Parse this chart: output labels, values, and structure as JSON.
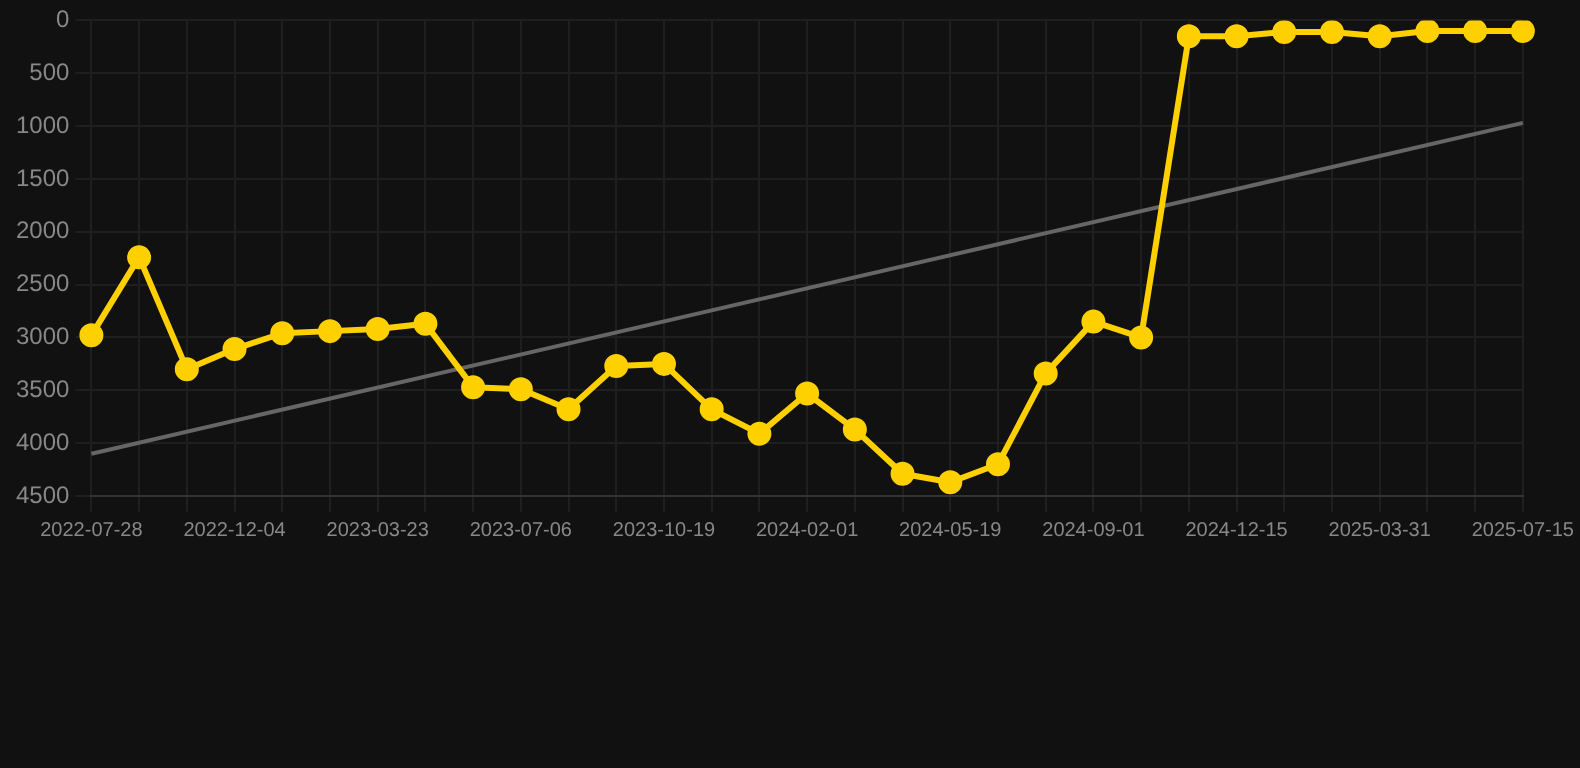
{
  "chart_data": {
    "type": "line",
    "categories": [
      "2022-07-28",
      null,
      null,
      "2022-12-04",
      null,
      null,
      "2023-03-23",
      null,
      null,
      "2023-07-06",
      null,
      null,
      "2023-10-19",
      null,
      null,
      "2024-02-01",
      null,
      null,
      "2024-05-19",
      null,
      null,
      "2024-09-01",
      null,
      null,
      "2024-12-15",
      null,
      null,
      "2025-03-31",
      null,
      null,
      "2025-07-15"
    ],
    "series": [
      {
        "color": "#ffd000",
        "marker": "circle",
        "values": [
          2980,
          2240,
          3300,
          3110,
          2960,
          2940,
          2920,
          2870,
          3470,
          3490,
          3680,
          3270,
          3250,
          3680,
          3910,
          3530,
          3870,
          4290,
          4370,
          4200,
          3340,
          2850,
          3000,
          150,
          150,
          110,
          110,
          150,
          100,
          100,
          100
        ]
      },
      {
        "color": "#666666",
        "marker": "none",
        "values": [
          4100,
          null,
          null,
          null,
          null,
          null,
          null,
          null,
          null,
          null,
          null,
          null,
          null,
          null,
          null,
          null,
          null,
          null,
          null,
          null,
          null,
          null,
          null,
          null,
          null,
          null,
          null,
          null,
          null,
          null,
          970
        ]
      }
    ],
    "ylim": [
      4500,
      0
    ],
    "yticks": [
      0,
      500,
      1000,
      1500,
      2000,
      2500,
      3000,
      3500,
      4000,
      4500
    ],
    "grid": true
  }
}
